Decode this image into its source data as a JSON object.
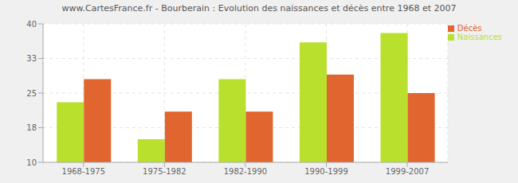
{
  "chart_data": {
    "type": "bar",
    "title": "www.CartesFrance.fr - Bourberain : Evolution des naissances et décès entre 1968 et 2007",
    "categories": [
      "1968-1975",
      "1975-1982",
      "1982-1990",
      "1990-1999",
      "1999-2007"
    ],
    "series": [
      {
        "name": "Naissances",
        "color": "#b9e02d",
        "values": [
          23,
          15,
          28,
          36,
          38
        ]
      },
      {
        "name": "Décès",
        "color": "#e0652f",
        "values": [
          28,
          21,
          21,
          29,
          25
        ]
      }
    ],
    "ylim": [
      10,
      40
    ],
    "yticks": [
      10,
      {
        "value": 17.5,
        "label": "18"
      },
      25,
      {
        "value": 32.5,
        "label": "33"
      },
      40
    ],
    "grid": true,
    "legend": "right"
  }
}
